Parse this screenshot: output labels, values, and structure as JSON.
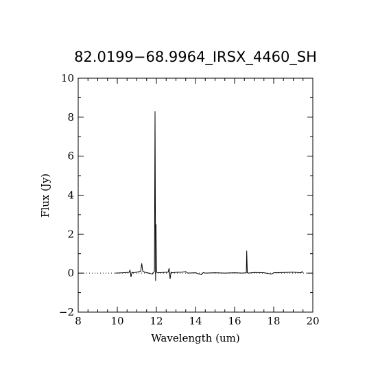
{
  "chart_data": {
    "type": "line",
    "title": "82.0199−68.9964_IRSX_4460_SH",
    "xlabel": "Wavelength (um)",
    "ylabel": "Flux (Jy)",
    "xlim": [
      8,
      20
    ],
    "ylim": [
      -2,
      10
    ],
    "xticks": [
      8,
      10,
      12,
      14,
      16,
      18,
      20
    ],
    "xtick_labels": [
      "8",
      "10",
      "12",
      "14",
      "16",
      "18",
      "20"
    ],
    "yticks": [
      -2,
      0,
      2,
      4,
      6,
      8,
      10
    ],
    "ytick_labels": [
      "−2",
      "0",
      "2",
      "4",
      "6",
      "8",
      "10"
    ],
    "grid": false,
    "zero_line": "dotted",
    "series": [
      {
        "x": [
          9.9,
          10.3,
          10.6,
          10.65,
          10.7,
          10.75,
          10.8,
          11.0,
          11.2,
          11.25,
          11.3,
          11.4,
          11.6,
          11.8,
          11.9,
          11.93,
          11.96,
          11.98,
          12.0,
          12.05,
          12.1,
          12.3,
          12.6,
          12.65,
          12.7,
          12.75,
          12.8,
          13.0,
          13.3,
          13.5,
          13.6,
          14.0,
          14.3,
          14.4,
          14.5,
          15.0,
          15.5,
          16.0,
          16.4,
          16.6,
          16.62,
          16.65,
          16.7,
          17.0,
          17.5,
          17.9,
          18.0,
          18.5,
          19.0,
          19.4,
          19.45,
          19.5
        ],
        "y": [
          0.0,
          0.02,
          0.04,
          0.15,
          -0.2,
          0.05,
          0.02,
          0.05,
          0.1,
          0.5,
          0.1,
          0.05,
          0.0,
          -0.05,
          0.1,
          8.3,
          -0.4,
          2.5,
          0.05,
          0.03,
          0.02,
          0.03,
          0.05,
          0.25,
          -0.3,
          0.05,
          0.02,
          0.04,
          0.05,
          0.08,
          0.0,
          0.02,
          -0.08,
          0.03,
          0.0,
          0.02,
          0.0,
          0.02,
          0.0,
          0.02,
          1.15,
          0.02,
          0.0,
          0.03,
          0.02,
          -0.05,
          0.02,
          0.03,
          0.05,
          0.02,
          0.08,
          0.02
        ]
      }
    ]
  }
}
